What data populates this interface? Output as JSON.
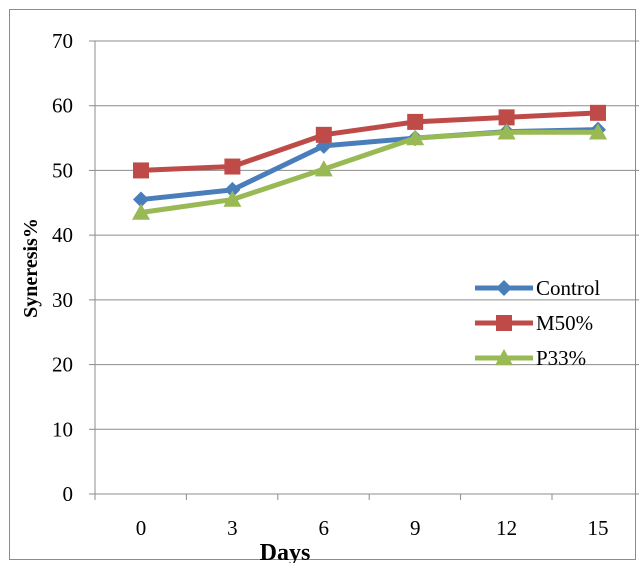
{
  "chart_data": {
    "type": "line",
    "title": "",
    "xlabel": "Days",
    "ylabel": "Syneresis%",
    "x": [
      0,
      3,
      6,
      9,
      12,
      15
    ],
    "x_tick_labels": [
      "0",
      "3",
      "6",
      "9",
      "12",
      "15"
    ],
    "y_tick_labels": [
      "0",
      "10",
      "20",
      "30",
      "40",
      "50",
      "60",
      "70"
    ],
    "ylim": [
      0,
      70
    ],
    "grid": "horizontal",
    "legend_position": "right",
    "series": [
      {
        "name": "Control",
        "values": [
          45.5,
          47.0,
          53.8,
          55.0,
          56.0,
          56.3
        ],
        "color": "#4a7ebb",
        "marker": "diamond"
      },
      {
        "name": "M50%",
        "values": [
          50.0,
          50.6,
          55.5,
          57.5,
          58.2,
          58.9
        ],
        "color": "#be4b48",
        "marker": "square"
      },
      {
        "name": "P33%",
        "values": [
          43.5,
          45.5,
          50.2,
          55.0,
          55.9,
          55.9
        ],
        "color": "#98b954",
        "marker": "triangle"
      }
    ]
  }
}
